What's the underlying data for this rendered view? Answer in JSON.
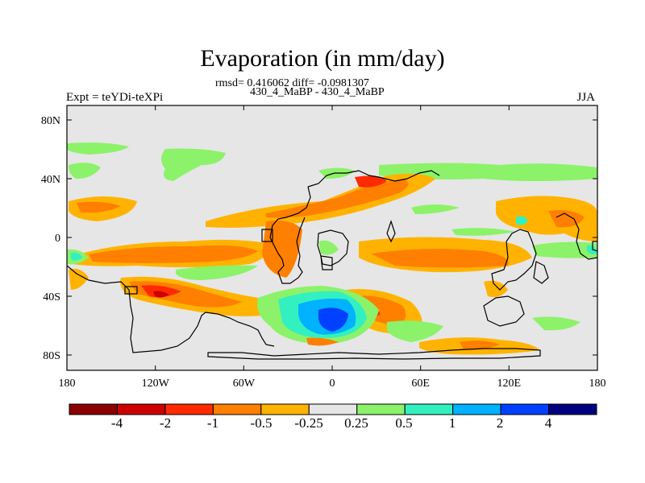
{
  "title": "Evaporation (in mm/day)",
  "stats": "rmsd= 0.416062 diff= -0.0981307",
  "comparison": "430_4_MaBP - 430_4_MaBP",
  "experiment": "Expt = teYDi-teXPi",
  "season": "JJA",
  "y_ticks": [
    "80N",
    "40N",
    "0",
    "40S",
    "80S"
  ],
  "x_ticks": [
    "180",
    "120W",
    "60W",
    "0",
    "60E",
    "120E",
    "180"
  ],
  "colorbar": {
    "labels": [
      "-4",
      "-2",
      "-1",
      "-0.5",
      "-0.25",
      "0.25",
      "0.5",
      "1",
      "2",
      "4"
    ],
    "colors": [
      "#8b0000",
      "#cc0000",
      "#ff2a00",
      "#ff7f00",
      "#ffb300",
      "#e6e6e6",
      "#8cf26a",
      "#33f0c0",
      "#00b2ff",
      "#0040ff",
      "#000080"
    ]
  }
}
